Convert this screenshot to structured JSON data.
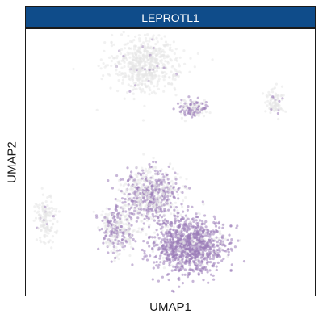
{
  "chart_data": {
    "type": "scatter",
    "title": "LEPROTL1",
    "xlabel": "UMAP1",
    "ylabel": "UMAP2",
    "ticks_shown": false,
    "grid": false,
    "legend": "none",
    "color_low": "#e6e6e6",
    "color_high": "#9b7bb8",
    "strip_color": "#0f4c8a",
    "clusters": [
      {
        "center": [
          -1.8,
          7.6
        ],
        "spread": [
          2.2,
          1.6
        ],
        "expression": "low",
        "points": 600
      },
      {
        "center": [
          1.6,
          4.6
        ],
        "spread": [
          0.9,
          0.5
        ],
        "expression": "medium",
        "points": 140
      },
      {
        "center": [
          7.2,
          5.0
        ],
        "spread": [
          0.5,
          0.8
        ],
        "expression": "low",
        "points": 90
      },
      {
        "center": [
          -8.6,
          -2.8
        ],
        "spread": [
          0.7,
          1.4
        ],
        "expression": "low",
        "points": 140
      },
      {
        "center": [
          -1.4,
          -1.2
        ],
        "spread": [
          1.8,
          1.5
        ],
        "expression": "medium",
        "points": 700
      },
      {
        "center": [
          1.2,
          -4.6
        ],
        "spread": [
          2.3,
          1.7
        ],
        "expression": "high",
        "points": 1100
      },
      {
        "center": [
          -3.6,
          -3.6
        ],
        "spread": [
          1.2,
          1.4
        ],
        "expression": "medium",
        "points": 300
      }
    ],
    "xlim": [
      -10,
      10
    ],
    "ylim": [
      -8,
      10
    ]
  }
}
